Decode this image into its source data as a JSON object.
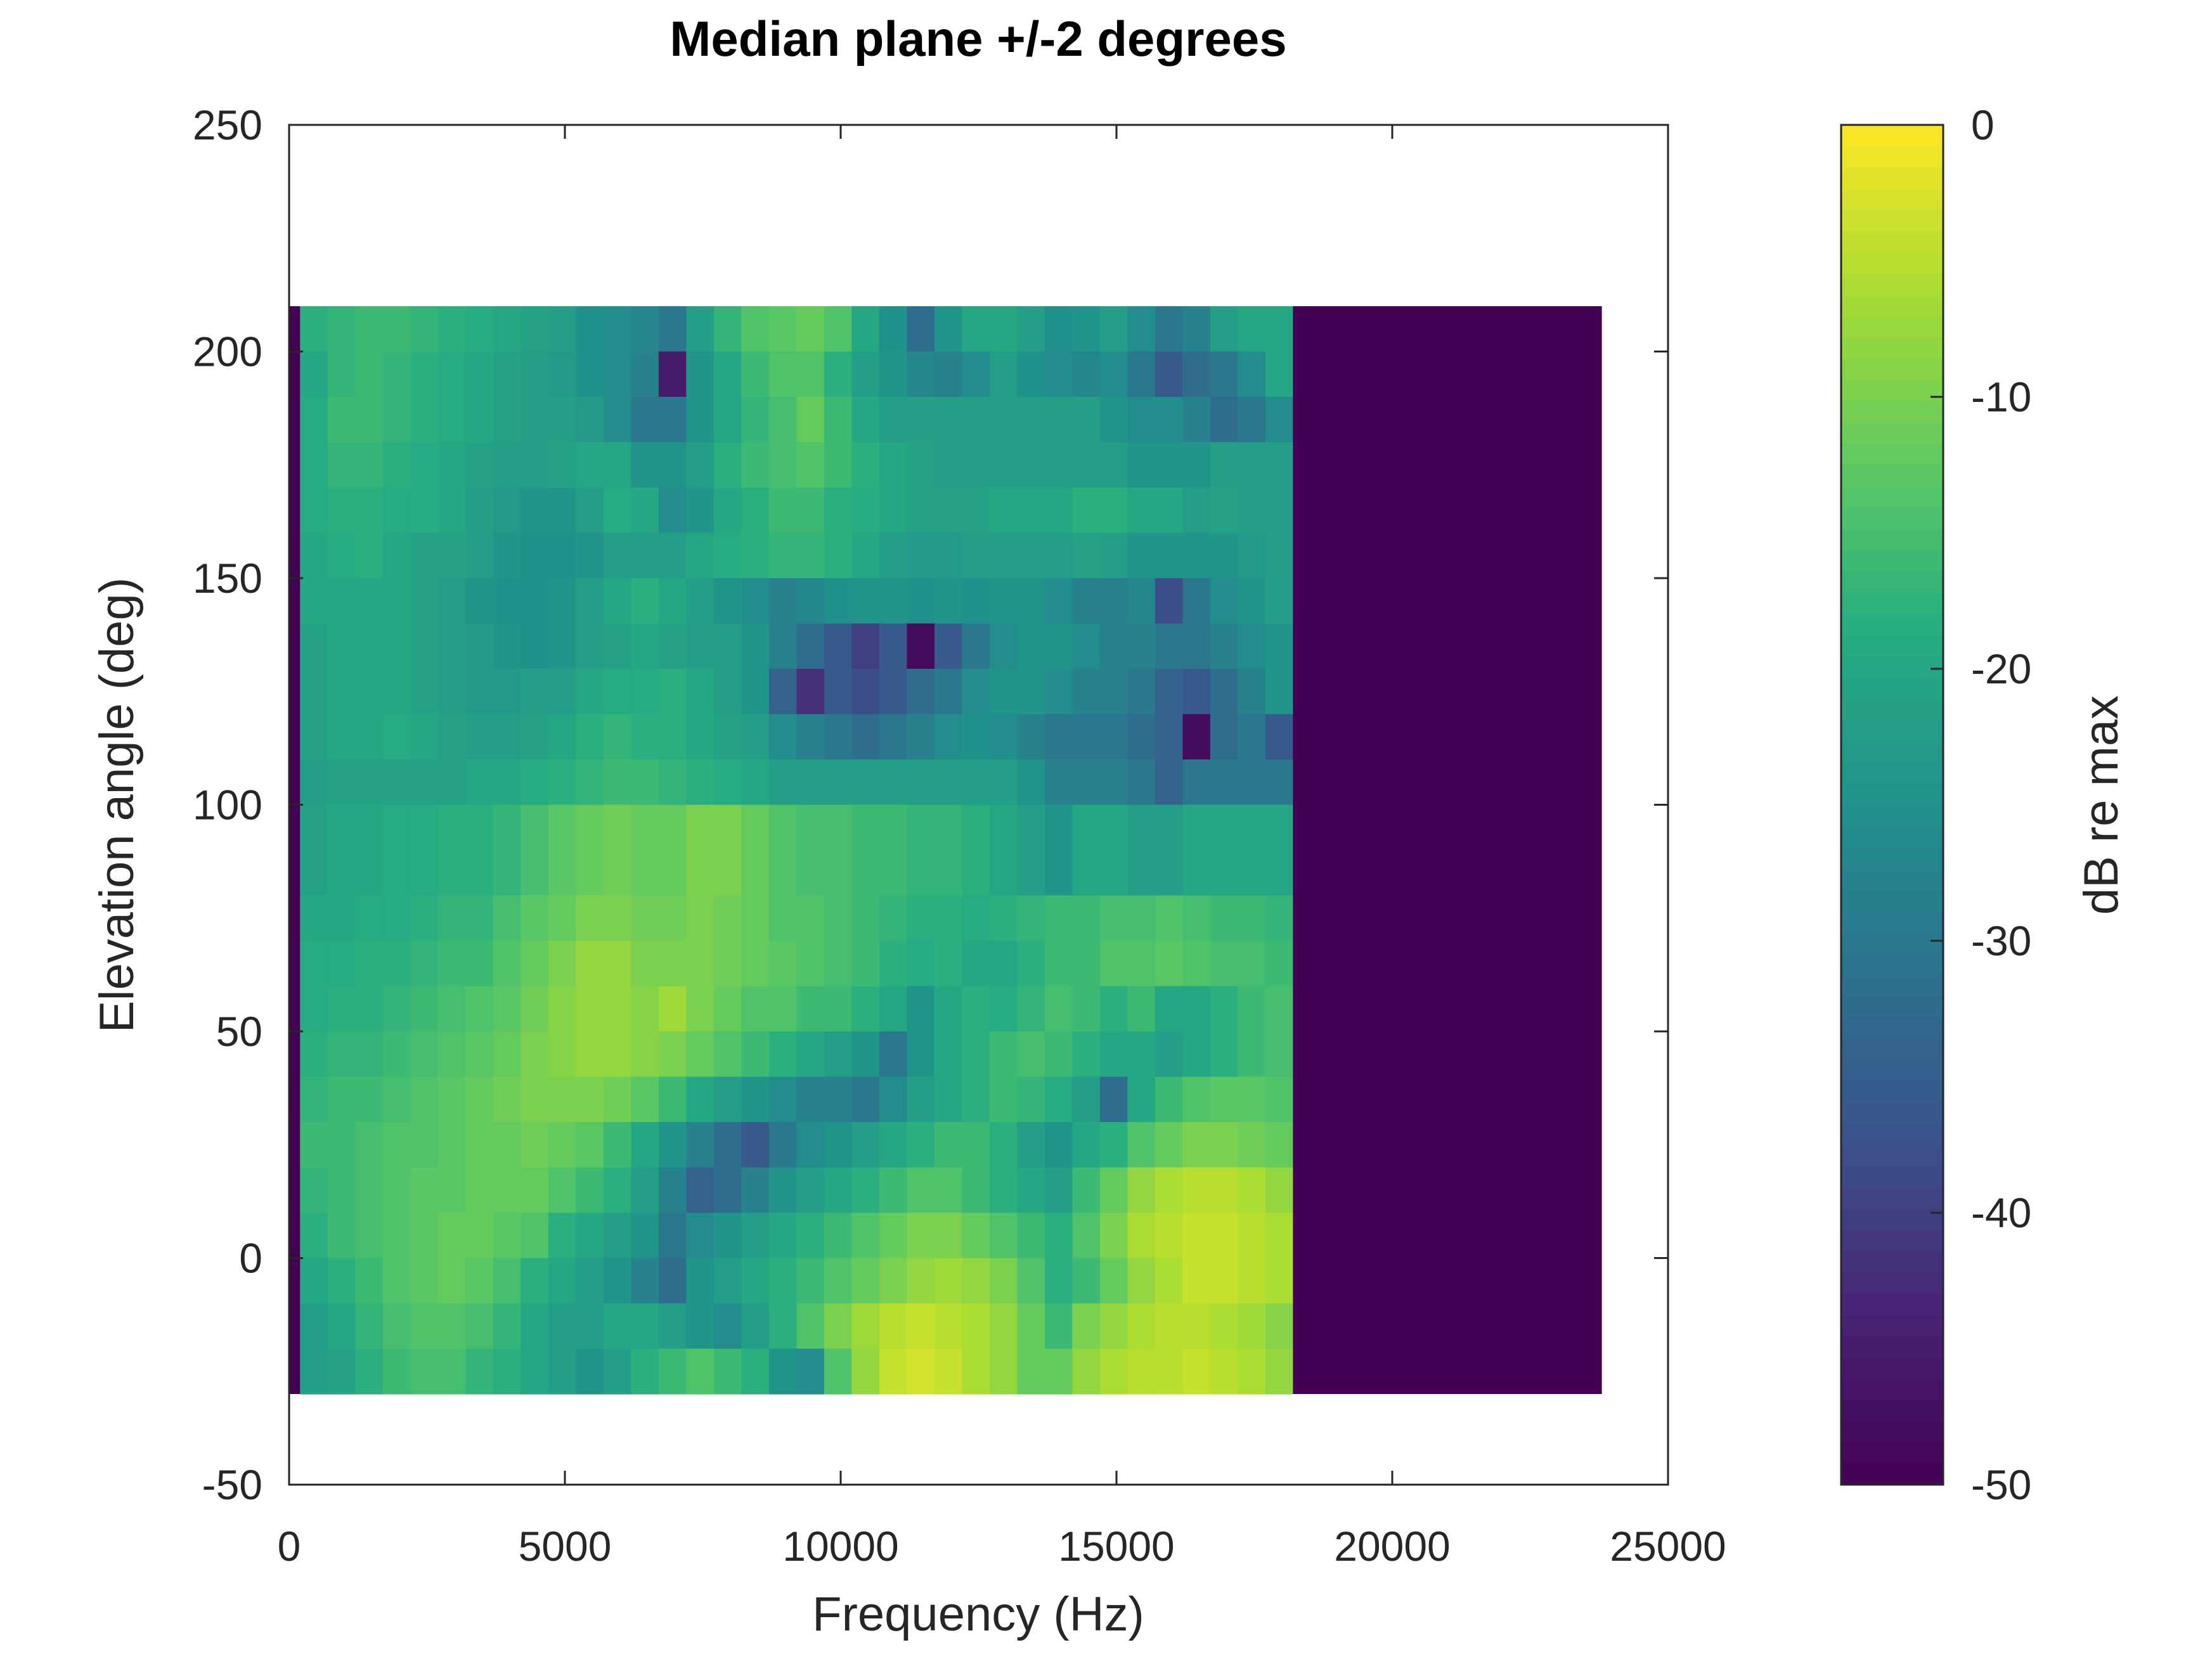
{
  "chart_data": {
    "type": "heatmap",
    "title": "Median plane +/-2 degrees",
    "xlabel": "Frequency (Hz)",
    "ylabel": "Elevation angle (deg)",
    "colorbar_label": "dB re max",
    "xlim": [
      0,
      25000
    ],
    "ylim": [
      -50,
      250
    ],
    "clim": [
      -50,
      0
    ],
    "xticks": [
      0,
      5000,
      10000,
      15000,
      20000,
      25000
    ],
    "xtick_labels": [
      "0",
      "5000",
      "10000",
      "15000",
      "20000",
      "25000"
    ],
    "yticks": [
      -50,
      0,
      50,
      100,
      150,
      200,
      250
    ],
    "ytick_labels": [
      "-50",
      "0",
      "50",
      "100",
      "150",
      "200",
      "250"
    ],
    "cticks": [
      -50,
      -40,
      -30,
      -20,
      -10,
      0
    ],
    "ctick_labels": [
      "-50",
      "-40",
      "-30",
      "-20",
      "-10",
      "0"
    ],
    "grid": false,
    "colormap": "viridis",
    "low_band": {
      "x_range": [
        0,
        200
      ],
      "value": -50
    },
    "floor_region": {
      "x_range": [
        18200,
        23800
      ],
      "value": -50
    },
    "x_start": 200,
    "x_step": 500,
    "y_top": 210,
    "y_step": 10,
    "rows": [
      [
        -18,
        -17,
        -16,
        -16,
        -17,
        -18,
        -19,
        -20,
        -21,
        -22,
        -25,
        -26,
        -27,
        -30,
        -22,
        -17,
        -14,
        -13,
        -12,
        -14,
        -20,
        -25,
        -32,
        -24,
        -20,
        -20,
        -22,
        -25,
        -24,
        -22,
        -26,
        -30,
        -28,
        -22,
        -20,
        -20
      ],
      [
        -20,
        -17,
        -16,
        -17,
        -18,
        -19,
        -20,
        -21,
        -22,
        -23,
        -25,
        -26,
        -28,
        -45,
        -24,
        -20,
        -16,
        -14,
        -14,
        -18,
        -22,
        -24,
        -27,
        -28,
        -26,
        -22,
        -25,
        -26,
        -27,
        -26,
        -30,
        -36,
        -32,
        -30,
        -26,
        -20
      ],
      [
        -19,
        -16,
        -16,
        -17,
        -18,
        -19,
        -20,
        -21,
        -22,
        -22,
        -23,
        -26,
        -30,
        -30,
        -24,
        -20,
        -17,
        -15,
        -12,
        -16,
        -20,
        -22,
        -22,
        -22,
        -22,
        -22,
        -22,
        -22,
        -22,
        -24,
        -26,
        -26,
        -28,
        -32,
        -30,
        -26
      ],
      [
        -19,
        -17,
        -17,
        -18,
        -19,
        -20,
        -21,
        -22,
        -22,
        -21,
        -20,
        -20,
        -24,
        -24,
        -22,
        -18,
        -16,
        -15,
        -14,
        -16,
        -18,
        -20,
        -21,
        -22,
        -22,
        -22,
        -22,
        -22,
        -22,
        -22,
        -24,
        -24,
        -24,
        -22,
        -22,
        -22
      ],
      [
        -19,
        -18,
        -18,
        -19,
        -19,
        -20,
        -22,
        -23,
        -24,
        -24,
        -22,
        -19,
        -20,
        -26,
        -24,
        -20,
        -18,
        -16,
        -16,
        -18,
        -19,
        -20,
        -21,
        -21,
        -21,
        -20,
        -20,
        -20,
        -18,
        -18,
        -20,
        -20,
        -22,
        -21,
        -22,
        -22
      ],
      [
        -20,
        -19,
        -18,
        -20,
        -21,
        -21,
        -22,
        -24,
        -25,
        -25,
        -24,
        -22,
        -22,
        -22,
        -20,
        -19,
        -18,
        -17,
        -17,
        -18,
        -20,
        -22,
        -23,
        -23,
        -22,
        -22,
        -22,
        -22,
        -21,
        -22,
        -24,
        -24,
        -24,
        -24,
        -23,
        -22
      ],
      [
        -20,
        -20,
        -20,
        -20,
        -21,
        -22,
        -24,
        -25,
        -25,
        -24,
        -22,
        -20,
        -18,
        -20,
        -22,
        -24,
        -26,
        -28,
        -27,
        -25,
        -24,
        -24,
        -25,
        -24,
        -25,
        -24,
        -24,
        -26,
        -28,
        -28,
        -27,
        -38,
        -30,
        -26,
        -24,
        -22
      ],
      [
        -21,
        -20,
        -20,
        -20,
        -21,
        -22,
        -23,
        -24,
        -25,
        -24,
        -22,
        -21,
        -20,
        -21,
        -22,
        -22,
        -24,
        -28,
        -32,
        -36,
        -40,
        -36,
        -48,
        -36,
        -30,
        -26,
        -24,
        -24,
        -26,
        -28,
        -28,
        -30,
        -30,
        -28,
        -26,
        -24
      ],
      [
        -21,
        -20,
        -20,
        -20,
        -21,
        -22,
        -23,
        -23,
        -22,
        -22,
        -20,
        -19,
        -19,
        -18,
        -20,
        -22,
        -24,
        -34,
        -42,
        -36,
        -38,
        -36,
        -32,
        -30,
        -26,
        -24,
        -24,
        -26,
        -28,
        -28,
        -30,
        -34,
        -36,
        -32,
        -28,
        -24
      ],
      [
        -21,
        -20,
        -20,
        -19,
        -20,
        -21,
        -22,
        -22,
        -21,
        -20,
        -18,
        -17,
        -18,
        -18,
        -20,
        -21,
        -22,
        -26,
        -28,
        -30,
        -32,
        -30,
        -28,
        -26,
        -25,
        -26,
        -28,
        -30,
        -30,
        -30,
        -32,
        -34,
        -48,
        -32,
        -30,
        -36
      ],
      [
        -22,
        -21,
        -21,
        -21,
        -21,
        -21,
        -20,
        -20,
        -19,
        -18,
        -17,
        -16,
        -16,
        -17,
        -18,
        -19,
        -20,
        -22,
        -22,
        -22,
        -22,
        -22,
        -22,
        -22,
        -22,
        -22,
        -24,
        -28,
        -28,
        -28,
        -30,
        -34,
        -30,
        -30,
        -30,
        -30
      ],
      [
        -21,
        -20,
        -20,
        -19,
        -19,
        -18,
        -18,
        -17,
        -15,
        -13,
        -12,
        -11,
        -12,
        -12,
        -10,
        -10,
        -12,
        -14,
        -15,
        -15,
        -16,
        -16,
        -17,
        -17,
        -18,
        -20,
        -22,
        -24,
        -20,
        -20,
        -22,
        -22,
        -20,
        -20,
        -20,
        -20
      ],
      [
        -21,
        -20,
        -20,
        -19,
        -19,
        -18,
        -18,
        -17,
        -15,
        -13,
        -12,
        -11,
        -12,
        -12,
        -10,
        -10,
        -12,
        -14,
        -15,
        -15,
        -16,
        -16,
        -17,
        -17,
        -18,
        -20,
        -22,
        -24,
        -20,
        -20,
        -22,
        -22,
        -20,
        -20,
        -20,
        -20
      ],
      [
        -20,
        -20,
        -19,
        -19,
        -18,
        -17,
        -17,
        -15,
        -13,
        -12,
        -10,
        -10,
        -11,
        -11,
        -10,
        -11,
        -12,
        -14,
        -14,
        -15,
        -16,
        -17,
        -18,
        -18,
        -19,
        -18,
        -17,
        -16,
        -16,
        -15,
        -15,
        -14,
        -15,
        -16,
        -16,
        -17
      ],
      [
        -19,
        -19,
        -18,
        -18,
        -17,
        -16,
        -16,
        -14,
        -12,
        -10,
        -8,
        -8,
        -10,
        -10,
        -10,
        -11,
        -12,
        -13,
        -14,
        -15,
        -16,
        -18,
        -19,
        -18,
        -20,
        -20,
        -18,
        -16,
        -16,
        -14,
        -14,
        -13,
        -14,
        -15,
        -15,
        -16
      ],
      [
        -19,
        -18,
        -18,
        -17,
        -16,
        -15,
        -14,
        -13,
        -11,
        -9,
        -8,
        -8,
        -9,
        -7,
        -10,
        -12,
        -14,
        -14,
        -16,
        -16,
        -18,
        -20,
        -24,
        -20,
        -18,
        -19,
        -17,
        -15,
        -16,
        -18,
        -16,
        -20,
        -20,
        -18,
        -16,
        -15
      ],
      [
        -18,
        -17,
        -17,
        -16,
        -15,
        -14,
        -13,
        -12,
        -10,
        -9,
        -8,
        -8,
        -9,
        -10,
        -12,
        -14,
        -16,
        -18,
        -20,
        -22,
        -24,
        -30,
        -24,
        -20,
        -18,
        -16,
        -15,
        -16,
        -18,
        -20,
        -20,
        -22,
        -20,
        -18,
        -16,
        -15
      ],
      [
        -17,
        -16,
        -16,
        -15,
        -14,
        -13,
        -12,
        -11,
        -10,
        -10,
        -10,
        -11,
        -13,
        -16,
        -20,
        -22,
        -24,
        -26,
        -28,
        -28,
        -30,
        -26,
        -22,
        -20,
        -18,
        -16,
        -17,
        -19,
        -22,
        -32,
        -20,
        -16,
        -14,
        -13,
        -13,
        -14
      ],
      [
        -16,
        -16,
        -15,
        -14,
        -14,
        -13,
        -12,
        -12,
        -11,
        -12,
        -13,
        -16,
        -20,
        -24,
        -28,
        -32,
        -36,
        -30,
        -26,
        -24,
        -22,
        -20,
        -18,
        -16,
        -16,
        -18,
        -22,
        -24,
        -20,
        -18,
        -14,
        -12,
        -10,
        -10,
        -11,
        -12
      ],
      [
        -17,
        -16,
        -15,
        -14,
        -13,
        -13,
        -12,
        -12,
        -12,
        -14,
        -16,
        -18,
        -22,
        -28,
        -34,
        -32,
        -28,
        -24,
        -22,
        -20,
        -18,
        -16,
        -14,
        -14,
        -16,
        -18,
        -20,
        -22,
        -16,
        -12,
        -8,
        -6,
        -5,
        -5,
        -6,
        -8
      ],
      [
        -18,
        -16,
        -15,
        -14,
        -13,
        -12,
        -12,
        -13,
        -14,
        -18,
        -20,
        -22,
        -24,
        -30,
        -26,
        -24,
        -22,
        -20,
        -18,
        -16,
        -14,
        -12,
        -10,
        -10,
        -12,
        -14,
        -16,
        -18,
        -14,
        -10,
        -6,
        -5,
        -4,
        -4,
        -5,
        -6
      ],
      [
        -20,
        -18,
        -16,
        -14,
        -13,
        -12,
        -13,
        -15,
        -18,
        -20,
        -22,
        -24,
        -28,
        -32,
        -24,
        -22,
        -20,
        -18,
        -16,
        -14,
        -12,
        -10,
        -8,
        -7,
        -8,
        -10,
        -14,
        -18,
        -16,
        -12,
        -8,
        -6,
        -4,
        -4,
        -5,
        -6
      ],
      [
        -22,
        -20,
        -17,
        -15,
        -14,
        -14,
        -15,
        -17,
        -20,
        -22,
        -22,
        -20,
        -20,
        -22,
        -24,
        -26,
        -22,
        -18,
        -14,
        -10,
        -7,
        -5,
        -4,
        -5,
        -6,
        -8,
        -12,
        -16,
        -10,
        -8,
        -6,
        -5,
        -5,
        -6,
        -7,
        -9
      ],
      [
        -22,
        -21,
        -18,
        -16,
        -15,
        -15,
        -17,
        -18,
        -20,
        -22,
        -24,
        -22,
        -18,
        -16,
        -14,
        -16,
        -18,
        -24,
        -26,
        -14,
        -8,
        -4,
        -3,
        -4,
        -6,
        -8,
        -12,
        -12,
        -8,
        -6,
        -5,
        -5,
        -4,
        -5,
        -6,
        -8
      ]
    ]
  }
}
